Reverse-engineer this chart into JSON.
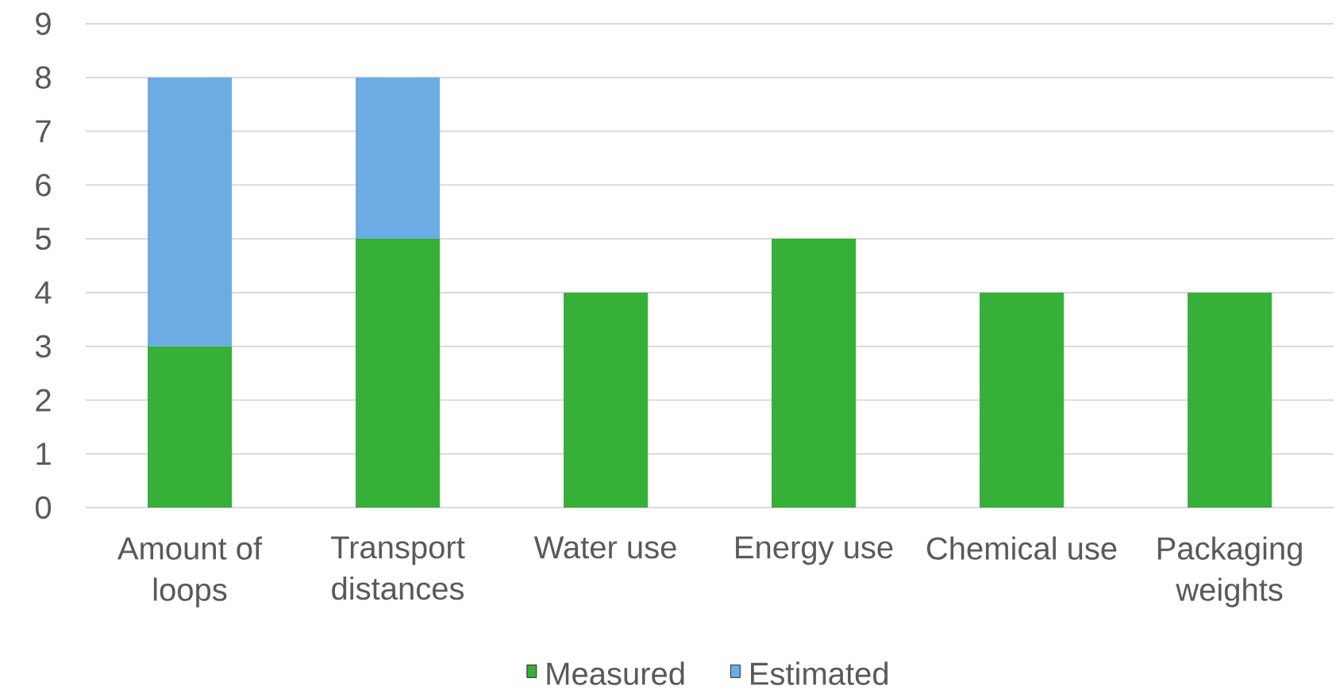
{
  "chart_data": {
    "type": "bar",
    "stacked": true,
    "categories": [
      "Amount of loops",
      "Transport distances",
      "Water use",
      "Energy use",
      "Chemical use",
      "Packaging weights"
    ],
    "series": [
      {
        "name": "Measured",
        "color": "#36b036",
        "values": [
          3,
          5,
          4,
          5,
          4,
          4
        ]
      },
      {
        "name": "Estimated",
        "color": "#6aace3",
        "values": [
          5,
          3,
          null,
          null,
          null,
          null
        ]
      }
    ],
    "ylim": [
      0,
      9
    ],
    "yticks": [
      0,
      1,
      2,
      3,
      4,
      5,
      6,
      7,
      8,
      9
    ],
    "grid": "y",
    "legend": "bottom"
  }
}
